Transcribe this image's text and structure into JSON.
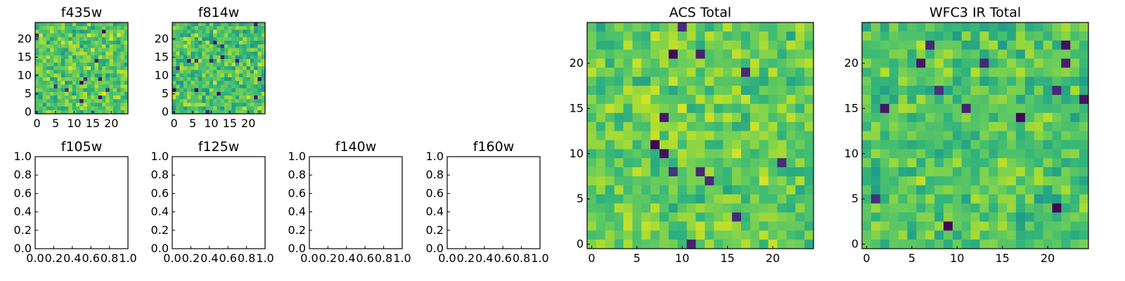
{
  "chart_data": [
    {
      "type": "heatmap",
      "title": "f435w",
      "xticks": [
        "0",
        "5",
        "10",
        "15",
        "20"
      ],
      "yticks": [
        "0",
        "5",
        "10",
        "15",
        "20"
      ],
      "size": 25,
      "colormap": "viridis",
      "seed": 11,
      "mean": 0.74,
      "spread": 0.23
    },
    {
      "type": "heatmap",
      "title": "f814w",
      "xticks": [
        "0",
        "5",
        "10",
        "15",
        "20"
      ],
      "yticks": [
        "0",
        "5",
        "10",
        "15",
        "20"
      ],
      "size": 25,
      "colormap": "viridis",
      "seed": 23,
      "mean": 0.72,
      "spread": 0.24
    },
    {
      "type": "heatmap",
      "title": "ACS Total",
      "xticks": [
        "0",
        "5",
        "10",
        "15",
        "20"
      ],
      "yticks": [
        "0",
        "5",
        "10",
        "15",
        "20"
      ],
      "size": 25,
      "colormap": "viridis",
      "seed": 37,
      "mean": 0.76,
      "spread": 0.2
    },
    {
      "type": "heatmap",
      "title": "WFC3 IR Total",
      "xticks": [
        "0",
        "5",
        "10",
        "15",
        "20"
      ],
      "yticks": [
        "0",
        "5",
        "10",
        "15",
        "20"
      ],
      "size": 25,
      "colormap": "viridis",
      "seed": 53,
      "mean": 0.72,
      "spread": 0.2
    },
    {
      "type": "empty",
      "title": "f105w",
      "xticks": [
        "0.0",
        "0.2",
        "0.4",
        "0.6",
        "0.8",
        "1.0"
      ],
      "yticks": [
        "0.0",
        "0.2",
        "0.4",
        "0.6",
        "0.8",
        "1.0"
      ]
    },
    {
      "type": "empty",
      "title": "f125w",
      "xticks": [
        "0.0",
        "0.2",
        "0.4",
        "0.6",
        "0.8",
        "1.0"
      ],
      "yticks": [
        "0.0",
        "0.2",
        "0.4",
        "0.6",
        "0.8",
        "1.0"
      ]
    },
    {
      "type": "empty",
      "title": "f140w",
      "xticks": [
        "0.0",
        "0.2",
        "0.4",
        "0.6",
        "0.8",
        "1.0"
      ],
      "yticks": [
        "0.0",
        "0.2",
        "0.4",
        "0.6",
        "0.8",
        "1.0"
      ]
    },
    {
      "type": "empty",
      "title": "f160w",
      "xticks": [
        "0.0",
        "0.2",
        "0.4",
        "0.6",
        "0.8",
        "1.0"
      ],
      "yticks": [
        "0.0",
        "0.2",
        "0.4",
        "0.6",
        "0.8",
        "1.0"
      ]
    }
  ]
}
